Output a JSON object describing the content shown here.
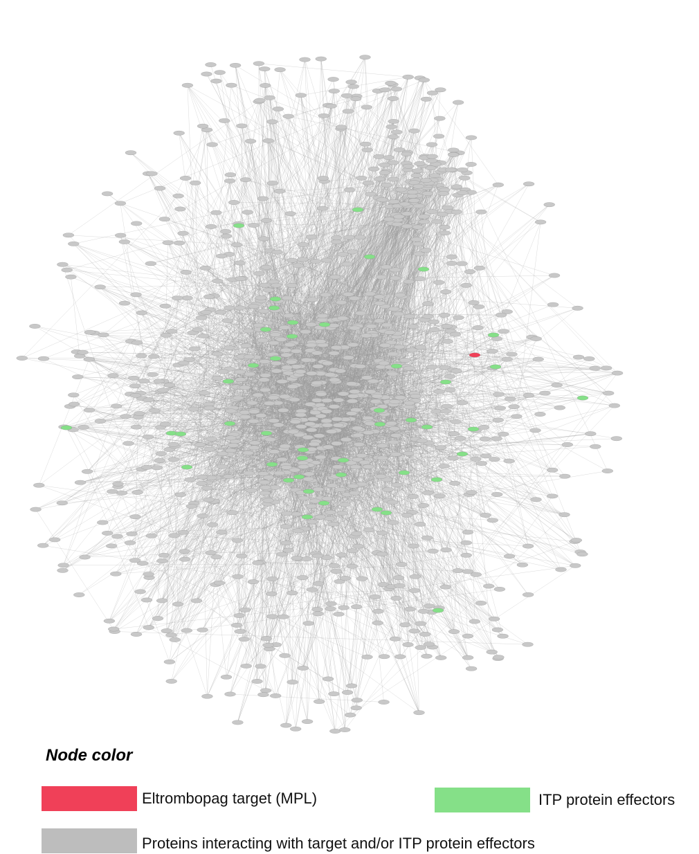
{
  "legend": {
    "title": "Node color",
    "items": [
      {
        "key": "target",
        "label": "Eltrombopag target (MPL)",
        "color": "#f04058"
      },
      {
        "key": "effector",
        "label": "ITP protein effectors",
        "color": "#85e088"
      },
      {
        "key": "interactor",
        "label": "Proteins interacting with target and/or ITP protein effectors",
        "color": "#bdbdbd"
      }
    ]
  },
  "colors": {
    "node_default": "#c8c8c8",
    "edge": "#9a9a9a",
    "target": "#f04058",
    "effector": "#85e088"
  }
}
